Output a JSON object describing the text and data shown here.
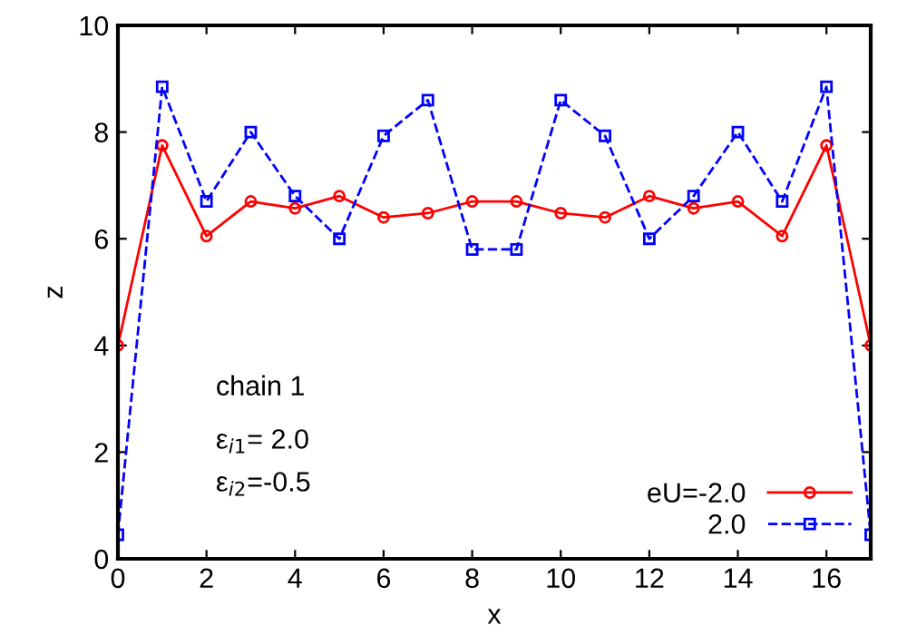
{
  "chart_data": {
    "type": "line",
    "xlabel": "x",
    "ylabel": "z",
    "x": [
      0,
      1,
      2,
      3,
      4,
      5,
      6,
      7,
      8,
      9,
      10,
      11,
      12,
      13,
      14,
      15,
      16,
      17
    ],
    "series": [
      {
        "name": "eU=-2.0",
        "color": "#ff0000",
        "marker": "circle",
        "line_style": "solid",
        "values": [
          4.0,
          7.75,
          6.05,
          6.7,
          6.57,
          6.8,
          6.4,
          6.48,
          6.7,
          6.7,
          6.48,
          6.4,
          6.8,
          6.57,
          6.7,
          6.05,
          7.75,
          4.0
        ]
      },
      {
        "name": "2.0",
        "color": "#0000ff",
        "marker": "square",
        "line_style": "dashed",
        "values": [
          0.45,
          8.85,
          6.7,
          8.0,
          6.8,
          6.0,
          7.93,
          8.6,
          5.8,
          5.8,
          8.6,
          7.93,
          6.0,
          6.8,
          8.0,
          6.7,
          8.85,
          0.45
        ]
      }
    ],
    "xlim": [
      0,
      17
    ],
    "xticks": [
      0,
      2,
      4,
      6,
      8,
      10,
      12,
      14,
      16
    ],
    "ylim": [
      0,
      10
    ],
    "yticks": [
      0,
      2,
      4,
      6,
      8,
      10
    ],
    "grid": false,
    "legend": "bottom right",
    "annotations": [
      "chain 1",
      "ε$_{i1}$= 2.0",
      "ε$_{i2}$=-0.5"
    ]
  }
}
